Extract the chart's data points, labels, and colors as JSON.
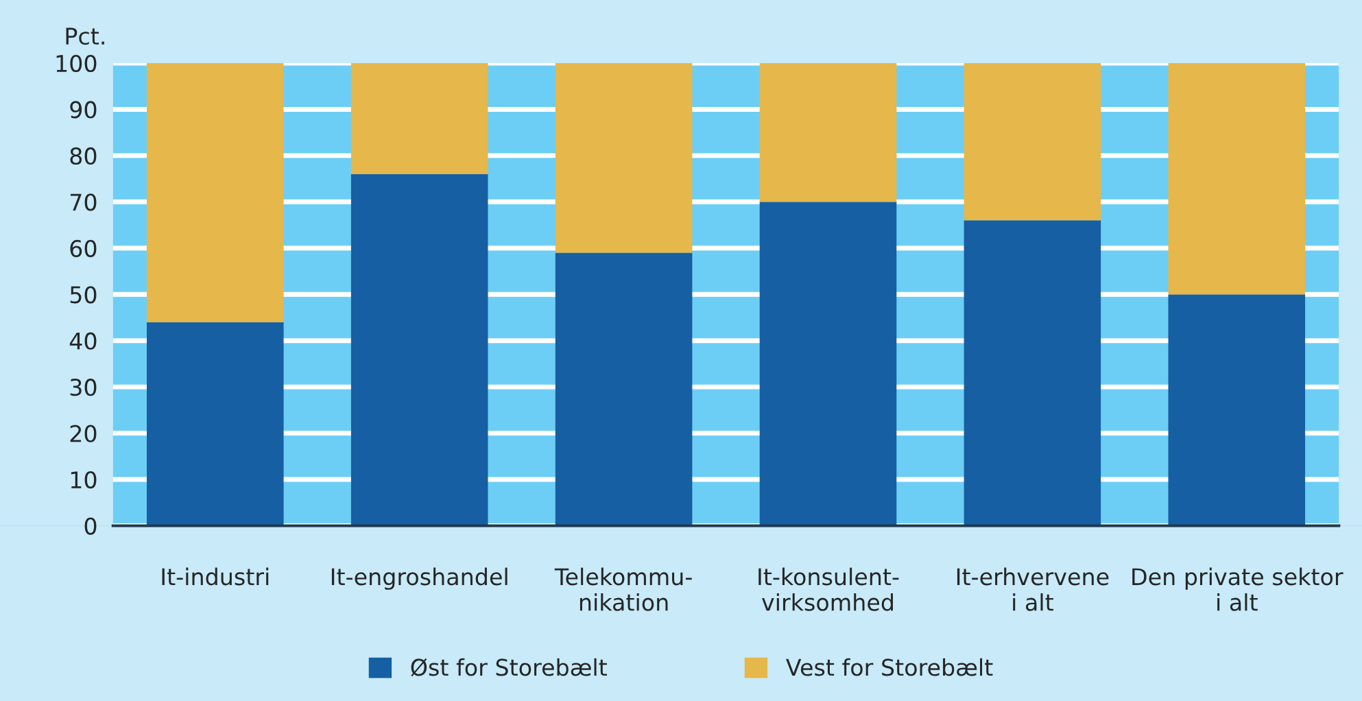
{
  "chart_data": {
    "type": "bar",
    "stacked": true,
    "ylabel": "Pct.",
    "categories": [
      "It-industri",
      "It-engroshandel",
      "Telekommu-\nnikation",
      "It-konsulent-\nvirksomhed",
      "It-erhvervene\ni alt",
      "Den private sektor\ni alt"
    ],
    "series": [
      {
        "name": "Øst for Storebælt",
        "color": "#165fa3",
        "values": [
          44,
          76,
          59,
          70,
          66,
          50
        ]
      },
      {
        "name": "Vest for Storebælt",
        "color": "#e6b74a",
        "values": [
          56,
          24,
          41,
          30,
          34,
          50
        ]
      }
    ],
    "ylim": [
      0,
      100
    ],
    "yticks": [
      0,
      10,
      20,
      30,
      40,
      50,
      60,
      70,
      80,
      90,
      100
    ],
    "grid": "y",
    "legend": "bottom"
  }
}
